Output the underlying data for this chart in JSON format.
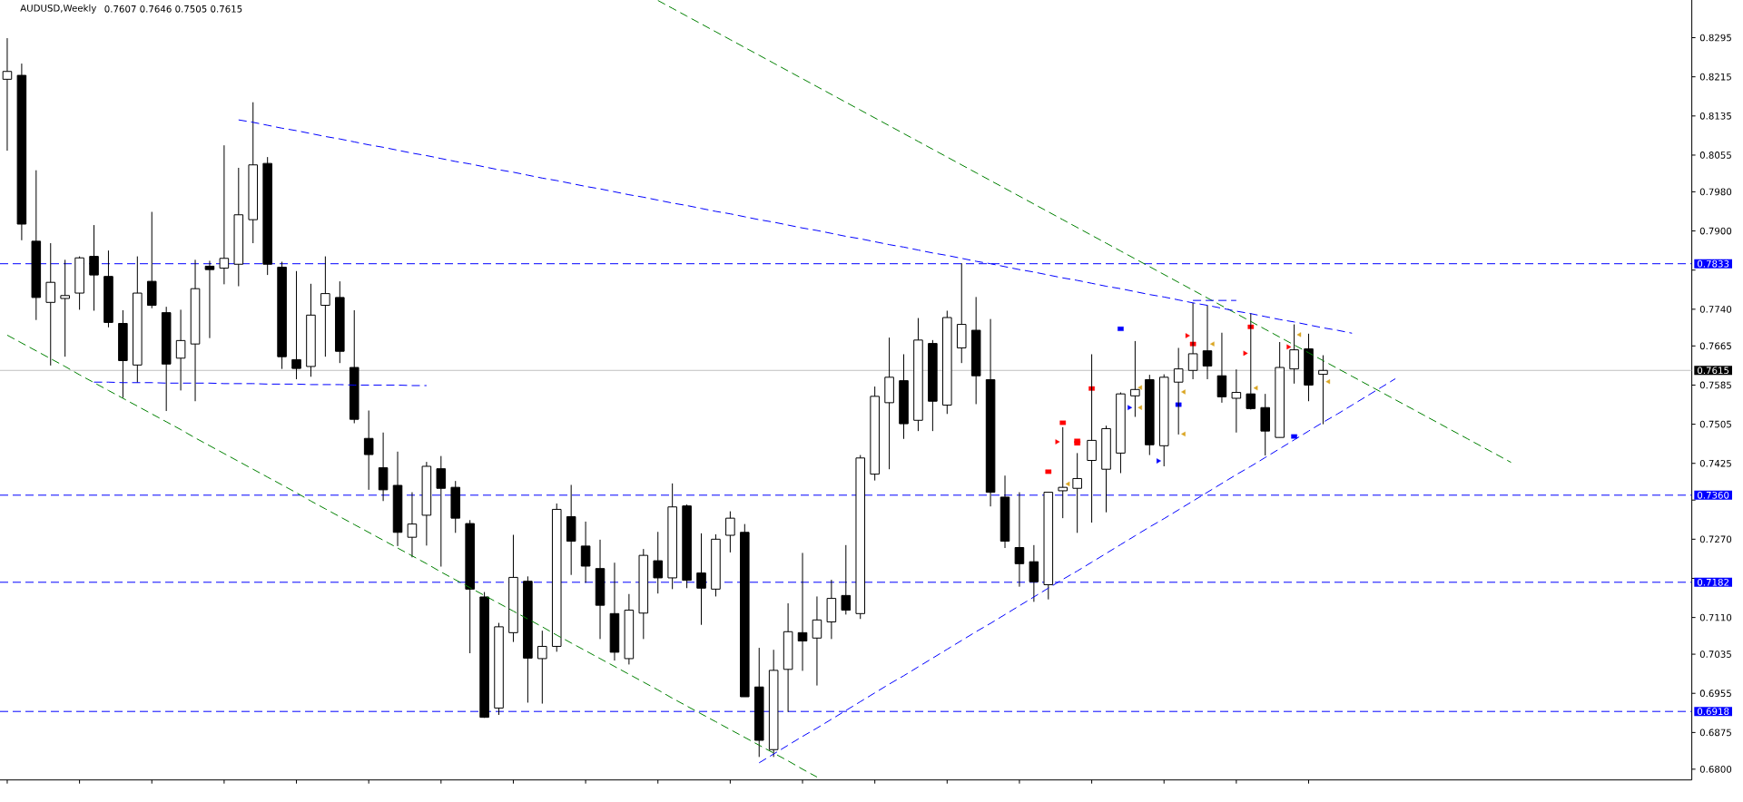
{
  "chart_data": {
    "type": "candlestick",
    "title": "AUDUSD,Weekly",
    "subtitle": "0.7607 0.7646 0.7505 0.7615",
    "categories": [
      null,
      null,
      null,
      null,
      null,
      null,
      null,
      null,
      null,
      null,
      null,
      null,
      null,
      null,
      null,
      null,
      null,
      null,
      null,
      null,
      null,
      null,
      null,
      null,
      null,
      null,
      null,
      null,
      null,
      null,
      null,
      null,
      null,
      null,
      null,
      null,
      null,
      null,
      null,
      null,
      null,
      null,
      null,
      null,
      null,
      null,
      null,
      null,
      null,
      null,
      null,
      null,
      null,
      null,
      null,
      null,
      null,
      null,
      null,
      null,
      null,
      null,
      null,
      null,
      null,
      null,
      null,
      null,
      null,
      null,
      null,
      null,
      null,
      null,
      null,
      null,
      null,
      null,
      null,
      null,
      null,
      null,
      null,
      null,
      null,
      null,
      null,
      null,
      null,
      null,
      null,
      null,
      null,
      null,
      null,
      null,
      null,
      null,
      null,
      null,
      null,
      null,
      null,
      null,
      null,
      null,
      null,
      null,
      null,
      null,
      null,
      null,
      null,
      null,
      null,
      null,
      null
    ],
    "ohlc": [
      [
        0.821,
        0.8294,
        0.8064,
        0.8226
      ],
      [
        0.8218,
        0.8242,
        0.7881,
        0.7914
      ],
      [
        0.7879,
        0.8024,
        0.7718,
        0.7764
      ],
      [
        0.7754,
        0.7875,
        0.7625,
        0.7795
      ],
      [
        0.7762,
        0.7841,
        0.7643,
        0.7768
      ],
      [
        0.7773,
        0.7848,
        0.7739,
        0.7845
      ],
      [
        0.7848,
        0.7912,
        0.7737,
        0.781
      ],
      [
        0.7807,
        0.786,
        0.7703,
        0.7713
      ],
      [
        0.7711,
        0.7738,
        0.7559,
        0.7635
      ],
      [
        0.7626,
        0.7848,
        0.759,
        0.7773
      ],
      [
        0.7797,
        0.7939,
        0.7742,
        0.7748
      ],
      [
        0.7733,
        0.7745,
        0.7532,
        0.7628
      ],
      [
        0.764,
        0.7739,
        0.7574,
        0.7676
      ],
      [
        0.7669,
        0.7841,
        0.7552,
        0.7782
      ],
      [
        0.7828,
        0.7839,
        0.7681,
        0.7821
      ],
      [
        0.7824,
        0.8075,
        0.7791,
        0.7844
      ],
      [
        0.7832,
        0.8029,
        0.7787,
        0.7933
      ],
      [
        0.7923,
        0.8163,
        0.7875,
        0.8035
      ],
      [
        0.8038,
        0.8051,
        0.781,
        0.7832
      ],
      [
        0.7826,
        0.7837,
        0.7618,
        0.7643
      ],
      [
        0.7637,
        0.7818,
        0.7597,
        0.7619
      ],
      [
        0.7623,
        0.7792,
        0.7602,
        0.7728
      ],
      [
        0.7748,
        0.7848,
        0.7643,
        0.7772
      ],
      [
        0.7764,
        0.7797,
        0.763,
        0.7654
      ],
      [
        0.7621,
        0.7738,
        0.7507,
        0.7515
      ],
      [
        0.7476,
        0.7533,
        0.7371,
        0.7443
      ],
      [
        0.7416,
        0.7488,
        0.7348,
        0.7371
      ],
      [
        0.738,
        0.7449,
        0.7256,
        0.7284
      ],
      [
        0.7274,
        0.7366,
        0.7233,
        0.7301
      ],
      [
        0.7319,
        0.7428,
        0.7257,
        0.7419
      ],
      [
        0.7414,
        0.744,
        0.7214,
        0.7374
      ],
      [
        0.7376,
        0.7389,
        0.7283,
        0.7313
      ],
      [
        0.7302,
        0.7309,
        0.7037,
        0.7168
      ],
      [
        0.7152,
        0.7162,
        0.6905,
        0.6906
      ],
      [
        0.6925,
        0.7099,
        0.6911,
        0.7091
      ],
      [
        0.7079,
        0.7279,
        0.706,
        0.7192
      ],
      [
        0.7184,
        0.7194,
        0.6936,
        0.7027
      ],
      [
        0.7026,
        0.7083,
        0.6934,
        0.7051
      ],
      [
        0.7051,
        0.7343,
        0.704,
        0.7331
      ],
      [
        0.7316,
        0.7381,
        0.7197,
        0.7266
      ],
      [
        0.7256,
        0.7306,
        0.7181,
        0.7215
      ],
      [
        0.721,
        0.7269,
        0.7066,
        0.7135
      ],
      [
        0.7118,
        0.7222,
        0.7022,
        0.7039
      ],
      [
        0.7026,
        0.7158,
        0.7014,
        0.7125
      ],
      [
        0.7119,
        0.725,
        0.7066,
        0.7237
      ],
      [
        0.7226,
        0.7285,
        0.7159,
        0.7191
      ],
      [
        0.7191,
        0.7384,
        0.7168,
        0.7336
      ],
      [
        0.7338,
        0.7341,
        0.717,
        0.7186
      ],
      [
        0.7201,
        0.7282,
        0.7095,
        0.717
      ],
      [
        0.7168,
        0.728,
        0.7153,
        0.727
      ],
      [
        0.7278,
        0.7327,
        0.7243,
        0.7313
      ],
      [
        0.7284,
        0.7301,
        0.6948,
        0.6948
      ],
      [
        0.6968,
        0.7048,
        0.6825,
        0.6859
      ],
      [
        0.684,
        0.7044,
        0.6825,
        0.7002
      ],
      [
        0.7004,
        0.7139,
        0.6917,
        0.7081
      ],
      [
        0.7079,
        0.7242,
        0.7001,
        0.7062
      ],
      [
        0.7068,
        0.7153,
        0.6971,
        0.7105
      ],
      [
        0.7101,
        0.7187,
        0.7066,
        0.7149
      ],
      [
        0.7155,
        0.7258,
        0.7116,
        0.7125
      ],
      [
        0.7118,
        0.7442,
        0.7107,
        0.7436
      ],
      [
        0.7403,
        0.7582,
        0.739,
        0.7562
      ],
      [
        0.7549,
        0.7682,
        0.7413,
        0.7601
      ],
      [
        0.7594,
        0.7648,
        0.7475,
        0.7506
      ],
      [
        0.7513,
        0.7722,
        0.7491,
        0.7677
      ],
      [
        0.767,
        0.7677,
        0.7491,
        0.7552
      ],
      [
        0.7544,
        0.7737,
        0.7526,
        0.7723
      ],
      [
        0.7661,
        0.7834,
        0.763,
        0.7709
      ],
      [
        0.7697,
        0.7765,
        0.7546,
        0.7604
      ],
      [
        0.7596,
        0.772,
        0.7337,
        0.7366
      ],
      [
        0.7356,
        0.74,
        0.7252,
        0.7266
      ],
      [
        0.7253,
        0.7366,
        0.7173,
        0.722
      ],
      [
        0.7224,
        0.7258,
        0.7142,
        0.7183
      ],
      [
        0.7177,
        0.7366,
        0.7147,
        0.7366
      ],
      [
        0.7369,
        0.7499,
        0.7313,
        0.7376
      ],
      [
        0.7374,
        0.7446,
        0.7283,
        0.7394
      ],
      [
        0.7431,
        0.7648,
        0.7304,
        0.7472
      ],
      [
        0.7413,
        0.7502,
        0.7325,
        0.7496
      ],
      [
        0.7446,
        0.757,
        0.7405,
        0.7567
      ],
      [
        0.7563,
        0.7675,
        0.752,
        0.7576
      ],
      [
        0.7596,
        0.7606,
        0.7442,
        0.7463
      ],
      [
        0.7461,
        0.7607,
        0.7419,
        0.7601
      ],
      [
        0.7591,
        0.7661,
        0.7484,
        0.7618
      ],
      [
        0.7615,
        0.7753,
        0.7597,
        0.7649
      ],
      [
        0.7655,
        0.7748,
        0.7597,
        0.7624
      ],
      [
        0.7604,
        0.7692,
        0.7549,
        0.7561
      ],
      [
        0.7558,
        0.7617,
        0.7488,
        0.757
      ],
      [
        0.7567,
        0.7732,
        0.7535,
        0.7537
      ],
      [
        0.7539,
        0.7567,
        0.7441,
        0.7491
      ],
      [
        0.7478,
        0.7673,
        0.7478,
        0.7621
      ],
      [
        0.7618,
        0.7709,
        0.7588,
        0.7657
      ],
      [
        0.7659,
        0.769,
        0.7552,
        0.7585
      ],
      [
        0.7607,
        0.7646,
        0.7505,
        0.7615
      ],
      null,
      null,
      null,
      null,
      null,
      null,
      null,
      null,
      null,
      null,
      null,
      null,
      null,
      null,
      null,
      null,
      null,
      null,
      null,
      null,
      null,
      null,
      null,
      null,
      null
    ],
    "color": "#000000",
    "colors": [
      "#ffffff",
      "#000000",
      "#000000",
      "#ffffff",
      "#ffffff",
      "#ffffff",
      "#000000",
      "#000000",
      "#000000",
      "#ffffff",
      "#000000",
      "#000000",
      "#ffffff",
      "#ffffff",
      "#000000",
      "#ffffff",
      "#ffffff",
      "#ffffff",
      "#000000",
      "#000000",
      "#000000",
      "#ffffff",
      "#ffffff",
      "#000000",
      "#000000",
      "#000000",
      "#000000",
      "#000000",
      "#ffffff",
      "#ffffff",
      "#000000",
      "#000000",
      "#000000",
      "#000000",
      "#ffffff",
      "#ffffff",
      "#000000",
      "#ffffff",
      "#ffffff",
      "#000000",
      "#000000",
      "#000000",
      "#000000",
      "#ffffff",
      "#ffffff",
      "#000000",
      "#ffffff",
      "#000000",
      "#000000",
      "#ffffff",
      "#ffffff",
      "#000000",
      "#000000",
      "#ffffff",
      "#ffffff",
      "#000000",
      "#ffffff",
      "#ffffff",
      "#000000",
      "#ffffff",
      "#ffffff",
      "#ffffff",
      "#000000",
      "#ffffff",
      "#000000",
      "#ffffff",
      "#ffffff",
      "#000000",
      "#000000",
      "#000000",
      "#000000",
      "#000000",
      "#ffffff",
      "#ffffff",
      "#ffffff",
      "#ffffff",
      "#ffffff",
      "#ffffff",
      "#ffffff",
      "#000000",
      "#ffffff",
      "#ffffff",
      "#ffffff",
      "#000000",
      "#000000",
      "#ffffff",
      "#000000",
      "#000000",
      "#ffffff",
      "#ffffff",
      "#000000",
      "#ffffff",
      null,
      null,
      null,
      null,
      null,
      null,
      null,
      null,
      null,
      null,
      null,
      null,
      null,
      null,
      null,
      null,
      null,
      null,
      null,
      null,
      null,
      null,
      null,
      null,
      null
    ],
    "series": [
      {
        "type": "line",
        "color": "#008000",
        "line_style": "dashed",
        "values": [
          0.7687,
          0.7671,
          0.7655,
          0.7639,
          0.7623,
          0.7606,
          0.759,
          0.7574,
          0.7558,
          0.7542,
          0.7526,
          0.751,
          0.7494,
          0.7477,
          0.7461,
          0.7445,
          0.7429,
          0.7413,
          0.7397,
          0.7381,
          0.7365,
          0.7348,
          0.7332,
          0.7316,
          0.73,
          0.7284,
          0.7268,
          0.7252,
          0.7236,
          0.722,
          0.7203,
          0.7187,
          0.7171,
          0.7155,
          0.7139,
          0.7123,
          0.7107,
          0.7091,
          0.7074,
          0.7058,
          0.7042,
          0.7026,
          0.701,
          0.6994,
          0.6978,
          0.6962,
          0.6945,
          0.6929,
          0.6913,
          0.6897,
          0.6881,
          0.6865,
          0.6849,
          0.6833,
          0.6817,
          0.68,
          0.6784,
          null,
          null,
          null,
          null,
          null,
          null,
          null,
          null,
          null,
          null,
          null,
          null,
          null,
          null,
          null,
          null,
          null,
          null,
          null,
          null,
          null,
          null,
          null,
          null,
          null,
          null,
          null,
          null,
          null,
          null,
          null,
          null,
          null,
          null,
          null,
          null,
          null,
          null,
          null,
          null,
          null,
          null,
          null,
          null,
          null,
          null,
          null,
          null,
          null,
          null,
          null,
          null,
          null,
          null,
          null,
          null,
          null,
          null,
          null,
          null
        ]
      },
      {
        "type": "line",
        "color": "#008000",
        "line_style": "dashed",
        "values": [
          null,
          null,
          null,
          null,
          null,
          null,
          null,
          null,
          null,
          null,
          null,
          null,
          null,
          null,
          null,
          null,
          null,
          null,
          null,
          null,
          null,
          null,
          null,
          null,
          null,
          null,
          null,
          null,
          null,
          null,
          null,
          null,
          null,
          null,
          null,
          null,
          null,
          null,
          null,
          null,
          null,
          null,
          null,
          null,
          null,
          0.8371,
          0.8355,
          0.8339,
          0.8323,
          0.8307,
          0.8291,
          0.8275,
          0.8259,
          0.8243,
          0.8227,
          0.8211,
          0.8195,
          0.8179,
          0.8163,
          0.8147,
          0.8131,
          0.8115,
          0.8099,
          0.8083,
          0.8067,
          0.8051,
          0.8035,
          0.8019,
          0.8003,
          0.7987,
          0.7971,
          0.7955,
          0.7939,
          0.7923,
          0.7907,
          0.7891,
          0.7875,
          0.7859,
          0.7843,
          0.7827,
          0.7811,
          0.7795,
          0.7779,
          0.7763,
          0.7747,
          0.7731,
          0.7715,
          0.7699,
          0.7683,
          0.7667,
          0.7651,
          0.7635,
          0.7619,
          0.7603,
          0.7587,
          0.7571,
          0.7555,
          0.7539,
          0.7523,
          0.7507,
          0.7491,
          0.7475,
          0.7459,
          0.7443,
          0.7427,
          null,
          null,
          null,
          null,
          null,
          null,
          null,
          null,
          null,
          null,
          null,
          null
        ]
      },
      {
        "type": "line",
        "color": "#0000ff",
        "line_style": "dashed",
        "values": [
          null,
          null,
          null,
          null,
          null,
          null,
          null,
          null,
          null,
          null,
          null,
          null,
          null,
          null,
          null,
          null,
          0.8127,
          0.8122,
          0.8116,
          0.811,
          0.8105,
          0.8099,
          0.8093,
          0.8088,
          0.8082,
          0.8076,
          0.8071,
          0.8065,
          0.8059,
          0.8054,
          0.8048,
          0.8042,
          0.8037,
          0.8031,
          0.8025,
          0.802,
          0.8014,
          0.8008,
          0.8003,
          0.7997,
          0.7991,
          0.7986,
          0.798,
          0.7974,
          0.7969,
          0.7963,
          0.7957,
          0.7952,
          0.7946,
          0.794,
          0.7935,
          0.7929,
          0.7923,
          0.7918,
          0.7912,
          0.7906,
          0.7901,
          0.7895,
          0.7889,
          0.7884,
          0.7878,
          0.7872,
          0.7867,
          0.7861,
          0.7855,
          0.785,
          0.7844,
          0.7838,
          0.7833,
          0.7827,
          0.7821,
          0.7816,
          0.781,
          0.7804,
          0.7799,
          0.7793,
          0.7787,
          0.7782,
          0.7776,
          0.777,
          0.7765,
          0.7759,
          0.7753,
          0.7748,
          0.7742,
          0.7736,
          0.7731,
          0.7725,
          0.7719,
          0.7714,
          0.7708,
          0.7702,
          0.7697,
          0.7691,
          null,
          null,
          null,
          null,
          null,
          null,
          null,
          null,
          null,
          null,
          null,
          null,
          null,
          null,
          null,
          null,
          null,
          null,
          null,
          null,
          null,
          null,
          null
        ]
      },
      {
        "type": "line",
        "color": "#0000ff",
        "line_style": "dashed",
        "values": [
          null,
          null,
          null,
          null,
          null,
          null,
          null,
          null,
          null,
          null,
          null,
          null,
          null,
          null,
          null,
          null,
          null,
          null,
          null,
          null,
          null,
          null,
          null,
          null,
          null,
          null,
          null,
          null,
          null,
          null,
          null,
          null,
          null,
          null,
          null,
          null,
          null,
          null,
          null,
          null,
          null,
          null,
          null,
          null,
          null,
          null,
          null,
          null,
          null,
          null,
          null,
          null,
          0.6813,
          0.6831,
          0.6849,
          0.6867,
          0.6884,
          0.6902,
          0.692,
          0.6938,
          0.6956,
          0.6974,
          0.6991,
          0.7009,
          0.7027,
          0.7045,
          0.7063,
          0.7081,
          0.7098,
          0.7116,
          0.7134,
          0.7152,
          0.717,
          0.7188,
          0.7205,
          0.7223,
          0.7241,
          0.7259,
          0.7277,
          0.7295,
          0.7312,
          0.733,
          0.7348,
          0.7366,
          0.7384,
          0.7402,
          0.7419,
          0.7437,
          0.7455,
          0.7473,
          0.7491,
          0.7509,
          0.7526,
          0.7544,
          0.7562,
          0.758,
          0.7598,
          null,
          null,
          null,
          null,
          null,
          null,
          null,
          null,
          null,
          null,
          null,
          null,
          null,
          null,
          null,
          null,
          null,
          null,
          null,
          null
        ]
      },
      {
        "type": "line",
        "color": "#0000ff",
        "line_style": "dashed",
        "values": [
          null,
          null,
          null,
          null,
          null,
          null,
          0.7591,
          0.7591,
          0.759,
          0.759,
          0.759,
          0.7589,
          0.7589,
          0.7589,
          0.7589,
          0.7588,
          0.7588,
          0.7588,
          0.7587,
          0.7587,
          0.7587,
          0.7586,
          0.7586,
          0.7586,
          0.7585,
          0.7585,
          0.7585,
          0.7585,
          0.7584,
          0.7584,
          null,
          null,
          null,
          null,
          null,
          null,
          null,
          null,
          null,
          null,
          null,
          null,
          null,
          null,
          null,
          null,
          null,
          null,
          null,
          null,
          null,
          null,
          null,
          null,
          null,
          null,
          null,
          null,
          null,
          null,
          null,
          null,
          null,
          null,
          null,
          null,
          null,
          null,
          null,
          null,
          null,
          null,
          null,
          null,
          null,
          null,
          null,
          null,
          null,
          null,
          null,
          null,
          null,
          null,
          null,
          null,
          null,
          null,
          null,
          null,
          null,
          null,
          null,
          null,
          null,
          null,
          null,
          null,
          null,
          null,
          null,
          null,
          null,
          null,
          null,
          null,
          null,
          null,
          null,
          null,
          null,
          null,
          null,
          null,
          null,
          null,
          null
        ]
      },
      {
        "type": "line",
        "color": "#0000ff",
        "line_style": "dashed",
        "values": [
          null,
          null,
          null,
          null,
          null,
          null,
          null,
          null,
          null,
          null,
          null,
          null,
          null,
          null,
          null,
          null,
          null,
          null,
          null,
          null,
          null,
          null,
          null,
          null,
          null,
          null,
          null,
          null,
          null,
          null,
          null,
          null,
          null,
          null,
          null,
          null,
          null,
          null,
          null,
          null,
          null,
          null,
          null,
          null,
          null,
          null,
          null,
          null,
          null,
          null,
          null,
          null,
          null,
          null,
          null,
          null,
          null,
          null,
          null,
          null,
          null,
          null,
          null,
          null,
          null,
          null,
          null,
          null,
          null,
          null,
          null,
          null,
          null,
          null,
          null,
          null,
          null,
          null,
          null,
          null,
          null,
          null,
          0.7758,
          0.7758,
          0.7758,
          0.7758,
          null,
          null,
          null,
          null,
          null,
          null,
          null,
          null,
          null,
          null,
          null,
          null,
          null,
          null,
          null,
          null,
          null,
          null,
          null,
          null,
          null,
          null,
          null,
          null,
          null,
          null,
          null,
          null,
          null,
          null,
          null
        ]
      },
      {
        "type": "scatter",
        "color": "#ff0000",
        "marker": "triangle",
        "values": [
          null,
          null,
          null,
          null,
          null,
          null,
          null,
          null,
          null,
          null,
          null,
          null,
          null,
          null,
          null,
          null,
          null,
          null,
          null,
          null,
          null,
          null,
          null,
          null,
          null,
          null,
          null,
          null,
          null,
          null,
          null,
          null,
          null,
          null,
          null,
          null,
          null,
          null,
          null,
          null,
          null,
          null,
          null,
          null,
          null,
          null,
          null,
          null,
          null,
          null,
          null,
          null,
          null,
          null,
          null,
          null,
          null,
          null,
          null,
          null,
          null,
          null,
          null,
          null,
          null,
          null,
          null,
          null,
          null,
          null,
          null,
          null,
          null,
          0.7469,
          null,
          null,
          null,
          null,
          null,
          null,
          null,
          null,
          0.7686,
          null,
          null,
          null,
          0.765,
          null,
          null,
          0.7663,
          null,
          null,
          null,
          null,
          null,
          null,
          null,
          null,
          null,
          null,
          null,
          null,
          null,
          null,
          null,
          null,
          null,
          null,
          null,
          null,
          null,
          null,
          null,
          null,
          null,
          null,
          null
        ]
      },
      {
        "type": "scatter",
        "color": "#0000ff",
        "marker": "triangle",
        "values": [
          null,
          null,
          null,
          null,
          null,
          null,
          null,
          null,
          null,
          null,
          null,
          null,
          null,
          null,
          null,
          null,
          null,
          null,
          null,
          null,
          null,
          null,
          null,
          null,
          null,
          null,
          null,
          null,
          null,
          null,
          null,
          null,
          null,
          null,
          null,
          null,
          null,
          null,
          null,
          null,
          null,
          null,
          null,
          null,
          null,
          null,
          null,
          null,
          null,
          null,
          null,
          null,
          null,
          null,
          null,
          null,
          null,
          null,
          null,
          null,
          null,
          null,
          null,
          null,
          null,
          null,
          null,
          null,
          null,
          null,
          null,
          null,
          null,
          null,
          null,
          null,
          null,
          null,
          0.7539,
          null,
          0.743,
          null,
          null,
          null,
          null,
          null,
          null,
          null,
          null,
          null,
          null,
          null,
          null,
          null,
          null,
          null,
          null,
          null,
          null,
          null,
          null,
          null,
          null,
          null,
          null,
          null,
          null,
          null,
          null,
          null,
          null,
          null,
          null,
          null,
          null,
          null,
          null
        ]
      },
      {
        "type": "scatter",
        "color": "#daa520",
        "marker": "triangle-left",
        "values": [
          null,
          null,
          null,
          null,
          null,
          null,
          null,
          null,
          null,
          null,
          null,
          null,
          null,
          null,
          null,
          null,
          null,
          null,
          null,
          null,
          null,
          null,
          null,
          null,
          null,
          null,
          null,
          null,
          null,
          null,
          null,
          null,
          null,
          null,
          null,
          null,
          null,
          null,
          null,
          null,
          null,
          null,
          null,
          null,
          null,
          null,
          null,
          null,
          null,
          null,
          null,
          null,
          null,
          null,
          null,
          null,
          null,
          null,
          null,
          null,
          null,
          null,
          null,
          null,
          null,
          null,
          null,
          null,
          null,
          null,
          null,
          null,
          null,
          0.7383,
          null,
          null,
          null,
          null,
          0.758,
          null,
          null,
          0.7571,
          null,
          0.7669,
          null,
          null,
          0.7579,
          null,
          null,
          0.7688,
          null,
          0.7592,
          null,
          null,
          null,
          null,
          null,
          null,
          null,
          null,
          null,
          null,
          null,
          null,
          null,
          null,
          null,
          null,
          null,
          null,
          null,
          null,
          null,
          null,
          null,
          null,
          null
        ]
      },
      {
        "type": "scatter",
        "color": "#daa520",
        "marker": "triangle-left",
        "values": [
          null,
          null,
          null,
          null,
          null,
          null,
          null,
          null,
          null,
          null,
          null,
          null,
          null,
          null,
          null,
          null,
          null,
          null,
          null,
          null,
          null,
          null,
          null,
          null,
          null,
          null,
          null,
          null,
          null,
          null,
          null,
          null,
          null,
          null,
          null,
          null,
          null,
          null,
          null,
          null,
          null,
          null,
          null,
          null,
          null,
          null,
          null,
          null,
          null,
          null,
          null,
          null,
          null,
          null,
          null,
          null,
          null,
          null,
          null,
          null,
          null,
          null,
          null,
          null,
          null,
          null,
          null,
          null,
          null,
          null,
          null,
          null,
          null,
          null,
          null,
          null,
          null,
          null,
          0.7539,
          null,
          null,
          0.7485,
          null,
          null,
          null,
          null,
          null,
          null,
          null,
          null,
          null,
          null,
          null,
          null,
          null,
          null,
          null,
          null,
          null,
          null,
          null,
          null,
          null,
          null,
          null,
          null,
          null,
          null,
          null,
          null,
          null,
          null,
          null,
          null,
          null,
          null,
          null
        ]
      },
      {
        "type": "scatter",
        "color": "#ff0000",
        "marker": "square",
        "values": [
          null,
          null,
          null,
          null,
          null,
          null,
          null,
          null,
          null,
          null,
          null,
          null,
          null,
          null,
          null,
          null,
          null,
          null,
          null,
          null,
          null,
          null,
          null,
          null,
          null,
          null,
          null,
          null,
          null,
          null,
          null,
          null,
          null,
          null,
          null,
          null,
          null,
          null,
          null,
          null,
          null,
          null,
          null,
          null,
          null,
          null,
          null,
          null,
          null,
          null,
          null,
          null,
          null,
          null,
          null,
          null,
          null,
          null,
          null,
          null,
          null,
          null,
          null,
          null,
          null,
          null,
          null,
          null,
          null,
          null,
          null,
          null,
          0.7408,
          0.7508,
          0.7471,
          0.7578,
          null,
          null,
          null,
          null,
          null,
          null,
          0.7669,
          null,
          null,
          null,
          0.7704,
          null,
          null,
          null,
          null,
          null,
          null,
          null,
          null,
          null,
          null,
          null,
          null,
          null,
          null,
          null,
          null,
          null,
          null,
          null,
          null,
          null,
          null,
          null,
          null,
          null,
          null,
          null,
          null,
          null,
          null
        ]
      },
      {
        "type": "scatter",
        "color": "#ff0000",
        "marker": "square",
        "values": [
          null,
          null,
          null,
          null,
          null,
          null,
          null,
          null,
          null,
          null,
          null,
          null,
          null,
          null,
          null,
          null,
          null,
          null,
          null,
          null,
          null,
          null,
          null,
          null,
          null,
          null,
          null,
          null,
          null,
          null,
          null,
          null,
          null,
          null,
          null,
          null,
          null,
          null,
          null,
          null,
          null,
          null,
          null,
          null,
          null,
          null,
          null,
          null,
          null,
          null,
          null,
          null,
          null,
          null,
          null,
          null,
          null,
          null,
          null,
          null,
          null,
          null,
          null,
          null,
          null,
          null,
          null,
          null,
          null,
          null,
          null,
          null,
          null,
          null,
          0.7466,
          null,
          null,
          null,
          null,
          null,
          null,
          null,
          null,
          null,
          null,
          null,
          null,
          null,
          null,
          null,
          null,
          null,
          null,
          null,
          null,
          null,
          null,
          null,
          null,
          null,
          null,
          null,
          null,
          null,
          null,
          null,
          null,
          null,
          null,
          null,
          null,
          null,
          null,
          null,
          null,
          null,
          null
        ]
      },
      {
        "type": "scatter",
        "color": "#0000ff",
        "marker": "square",
        "values": [
          null,
          null,
          null,
          null,
          null,
          null,
          null,
          null,
          null,
          null,
          null,
          null,
          null,
          null,
          null,
          null,
          null,
          null,
          null,
          null,
          null,
          null,
          null,
          null,
          null,
          null,
          null,
          null,
          null,
          null,
          null,
          null,
          null,
          null,
          null,
          null,
          null,
          null,
          null,
          null,
          null,
          null,
          null,
          null,
          null,
          null,
          null,
          null,
          null,
          null,
          null,
          null,
          null,
          null,
          null,
          null,
          null,
          null,
          null,
          null,
          null,
          null,
          null,
          null,
          null,
          null,
          null,
          null,
          null,
          null,
          null,
          null,
          null,
          null,
          null,
          null,
          null,
          0.77,
          null,
          null,
          null,
          0.7545,
          null,
          null,
          null,
          null,
          null,
          null,
          null,
          0.748,
          null,
          null,
          null,
          null,
          null,
          null,
          null,
          null,
          null,
          null,
          null,
          null,
          null,
          null,
          null,
          null,
          null,
          null,
          null,
          null,
          null,
          null,
          null,
          null,
          null,
          null,
          null
        ]
      }
    ],
    "ref_lines": [
      {
        "axis": "y",
        "value": 0.7833,
        "label": "0.7833",
        "color": "#0000ff",
        "line_style": "dashed"
      },
      {
        "axis": "y",
        "value": 0.7615,
        "label": "0.7615",
        "color": "#c0c0c0",
        "line_style": "solid"
      },
      {
        "axis": "y",
        "value": 0.736,
        "label": "0.7360",
        "color": "#0000ff",
        "line_style": "dashed"
      },
      {
        "axis": "y",
        "value": 0.7182,
        "label": "0.7182",
        "color": "#0000ff",
        "line_style": "dashed"
      },
      {
        "axis": "y",
        "value": 0.6918,
        "label": "0.6918",
        "color": "#0000ff",
        "line_style": "dashed"
      }
    ],
    "ylim": [
      0.6778,
      0.8372
    ],
    "yticks": [
      {
        "value": 0.68,
        "label": "0.6800"
      },
      0.6875,
      0.6955,
      0.7035,
      {
        "value": 0.711,
        "label": "0.7110"
      },
      {
        "value": 0.719,
        "label": null
      },
      {
        "value": 0.727,
        "label": "0.7270"
      },
      {
        "value": 0.735,
        "label": null
      },
      0.7425,
      0.7505,
      0.7585,
      0.7665,
      {
        "value": 0.774,
        "label": "0.7740"
      },
      {
        "value": 0.782,
        "label": null
      },
      {
        "value": 0.79,
        "label": "0.7900"
      },
      {
        "value": 0.798,
        "label": "0.7980"
      },
      0.8055,
      0.8135,
      0.8215,
      0.8295
    ],
    "tick_labels": "y"
  }
}
